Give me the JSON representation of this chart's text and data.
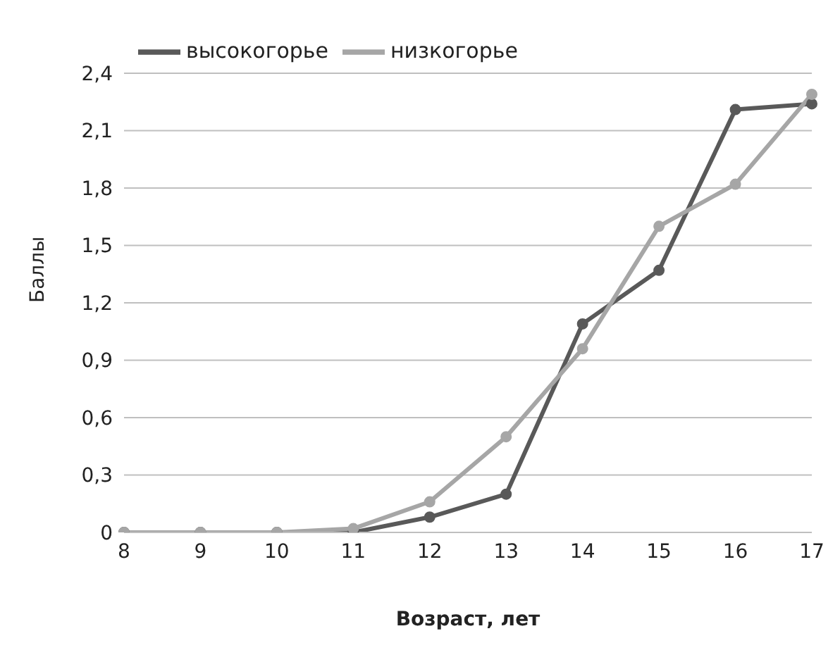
{
  "chart_data": {
    "type": "line",
    "xlabel": "Возраст, лет",
    "ylabel": "Баллы",
    "categories": [
      "8",
      "9",
      "10",
      "11",
      "12",
      "13",
      "14",
      "15",
      "16",
      "17"
    ],
    "series": [
      {
        "name": "высокогорье",
        "color": "#595959",
        "values": [
          0,
          0,
          0,
          0,
          0.08,
          0.2,
          1.09,
          1.37,
          2.21,
          2.24
        ]
      },
      {
        "name": "низкогорье",
        "color": "#a6a6a6",
        "values": [
          0,
          0,
          0,
          0.02,
          0.16,
          0.5,
          0.96,
          1.6,
          1.82,
          2.29
        ]
      }
    ],
    "ylim": [
      0,
      2.4
    ],
    "yticks": [
      {
        "value": 0,
        "label": "0"
      },
      {
        "value": 0.3,
        "label": "0,3"
      },
      {
        "value": 0.6,
        "label": "0,6"
      },
      {
        "value": 0.9,
        "label": "0,9"
      },
      {
        "value": 1.2,
        "label": "1,2"
      },
      {
        "value": 1.5,
        "label": "1,5"
      },
      {
        "value": 1.8,
        "label": "1,8"
      },
      {
        "value": 2.1,
        "label": "2,1"
      },
      {
        "value": 2.4,
        "label": "2,4"
      }
    ],
    "grid": "y",
    "legend": "top left",
    "marker": "circle",
    "line_style": "solid"
  }
}
